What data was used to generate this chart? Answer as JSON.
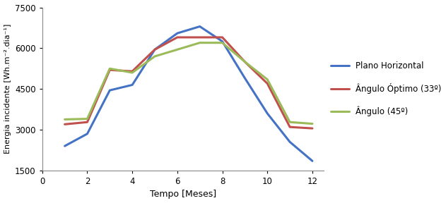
{
  "months": [
    1,
    2,
    3,
    4,
    5,
    6,
    7,
    8,
    9,
    10,
    11,
    12
  ],
  "plano_horizontal": [
    2400,
    2850,
    4450,
    4650,
    5950,
    6550,
    6800,
    6250,
    4900,
    3600,
    2550,
    1850
  ],
  "angulo_otimo": [
    3200,
    3280,
    5200,
    5150,
    5950,
    6400,
    6400,
    6400,
    5500,
    4700,
    3100,
    3050
  ],
  "angulo_45": [
    3380,
    3400,
    5250,
    5100,
    5700,
    5950,
    6200,
    6200,
    5500,
    4850,
    3280,
    3220
  ],
  "colors": {
    "plano_horizontal": "#4472C4",
    "angulo_otimo": "#C0504D",
    "angulo_45": "#9BBB59"
  },
  "legend_labels": [
    "Plano Horizontal",
    "Ângulo Óptimo (33º)",
    "Ângulo (45º)"
  ],
  "xlabel": "Tempo [Meses]",
  "ylabel": "Energia incidente [Wh.m⁻².dia⁻¹]",
  "xlim": [
    0,
    12.5
  ],
  "ylim": [
    1500,
    7500
  ],
  "yticks": [
    1500,
    3000,
    4500,
    6000,
    7500
  ],
  "xticks": [
    0,
    2,
    4,
    6,
    8,
    10,
    12
  ],
  "linewidth": 2.2,
  "background_color": "#ffffff"
}
